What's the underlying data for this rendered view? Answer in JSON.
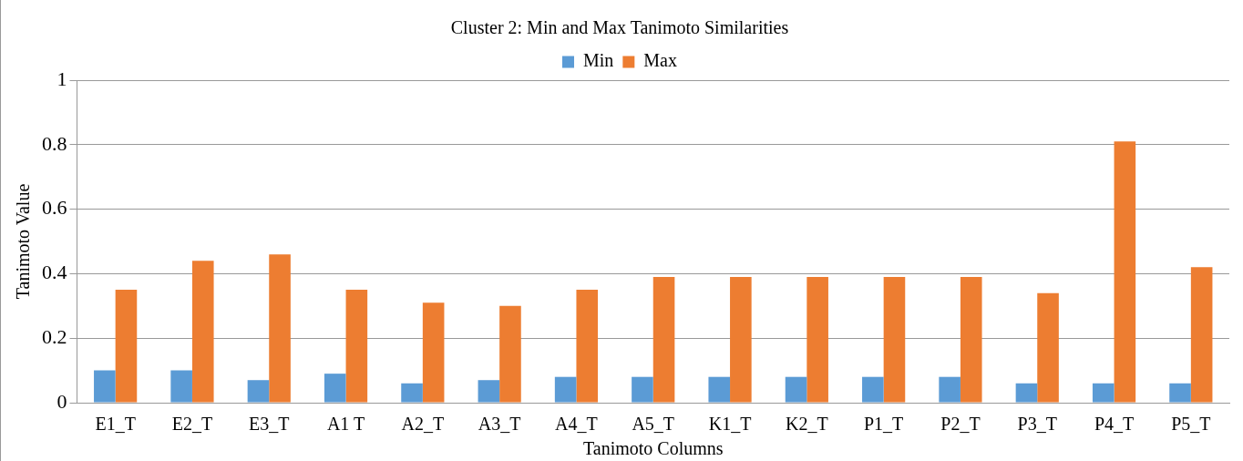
{
  "chart_data": {
    "type": "bar",
    "title": "Cluster 2: Min and Max Tanimoto Similarities",
    "xlabel": "Tanimoto Columns",
    "ylabel": "Tanimoto Value",
    "categories": [
      "E1_T",
      "E2_T",
      "E3_T",
      "A1 T",
      "A2_T",
      "A3_T",
      "A4_T",
      "A5_T",
      "K1_T",
      "K2_T",
      "P1_T",
      "P2_T",
      "P3_T",
      "P4_T",
      "P5_T"
    ],
    "series": [
      {
        "name": "Min",
        "color": "#5b9bd5",
        "values": [
          0.1,
          0.1,
          0.07,
          0.09,
          0.06,
          0.07,
          0.08,
          0.08,
          0.08,
          0.08,
          0.08,
          0.08,
          0.06,
          0.06,
          0.06
        ]
      },
      {
        "name": "Max",
        "color": "#ed7d31",
        "values": [
          0.35,
          0.44,
          0.46,
          0.35,
          0.31,
          0.3,
          0.35,
          0.39,
          0.39,
          0.39,
          0.39,
          0.39,
          0.34,
          0.81,
          0.42
        ]
      }
    ],
    "ylim": [
      0,
      1
    ],
    "yticks": [
      0,
      0.2,
      0.4,
      0.6,
      0.8,
      1
    ],
    "grid": "y",
    "legend": "top"
  }
}
